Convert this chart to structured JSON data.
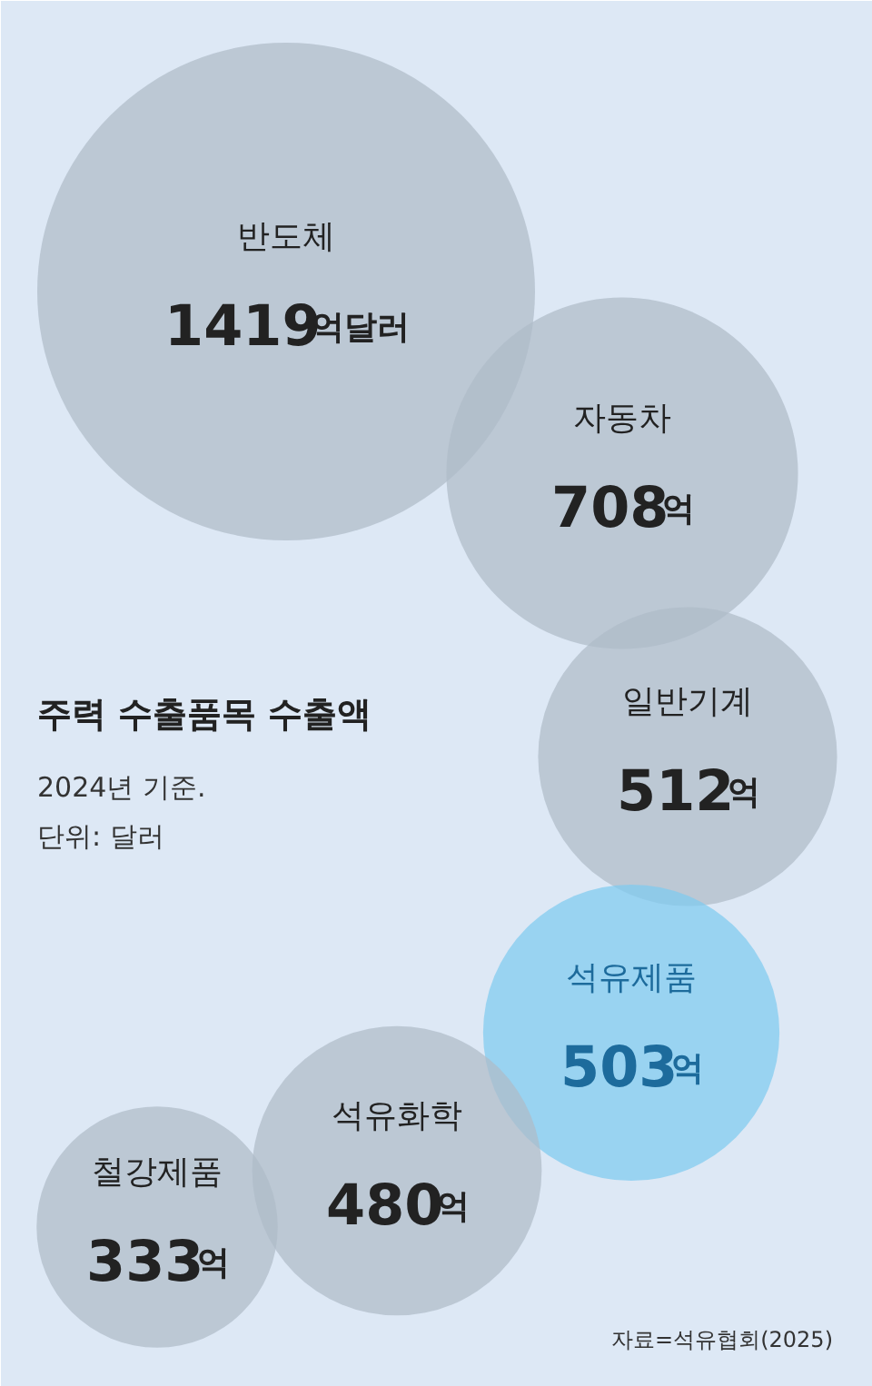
{
  "chart_data": {
    "type": "other",
    "title": "주력 수출품목 수출액",
    "subtitle": "2024년 기준.",
    "annotations": [
      "단위: 달러",
      "자료=석유협회(2025)"
    ],
    "categories": [
      "반도체",
      "자동차",
      "일반기계",
      "석유제품",
      "석유화학",
      "철강제품"
    ],
    "values": [
      1419,
      708,
      512,
      503,
      480,
      333
    ],
    "value_labels": [
      "1419억달러",
      "708억",
      "512억",
      "503억",
      "480억",
      "333억"
    ],
    "colors": [
      "#aebbc8",
      "#aebbc8",
      "#aebbc8",
      "#7ecbf0",
      "#aebbc8",
      "#aebbc8"
    ]
  }
}
